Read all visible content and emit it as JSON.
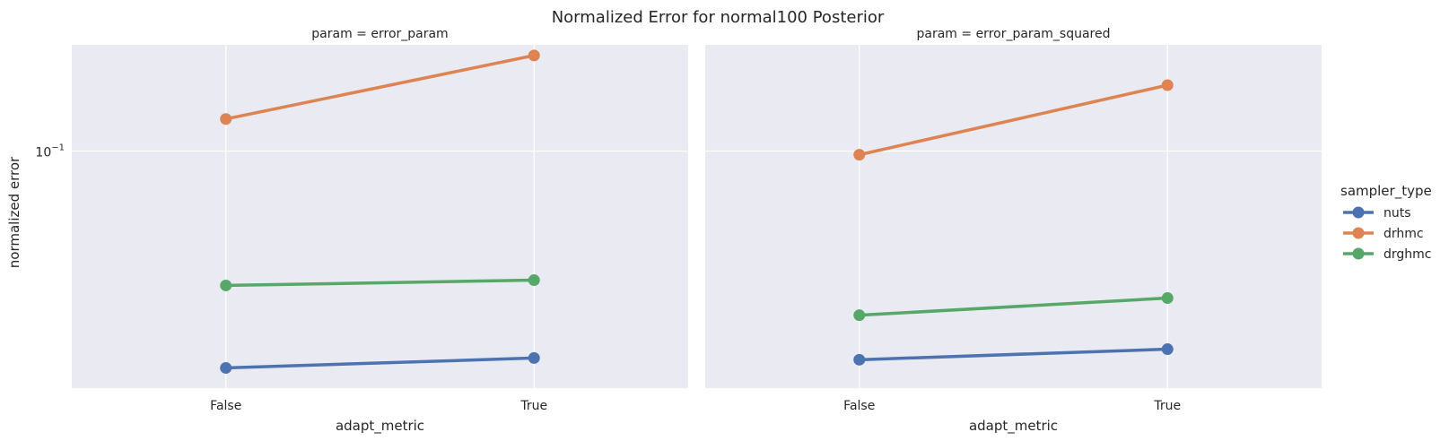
{
  "chart_data": {
    "type": "line",
    "title": "Normalized Error for normal100 Posterior",
    "xlabel": "adapt_metric",
    "ylabel": "normalized error",
    "categories": [
      "False",
      "True"
    ],
    "yscale": "log",
    "ylim": [
      0.0276,
      0.178
    ],
    "yticks": [
      {
        "value": 0.1,
        "label": "10",
        "exponent": "−1"
      }
    ],
    "grid": true,
    "legend": {
      "title": "sampler_type",
      "placement": "right",
      "entries": [
        {
          "name": "nuts",
          "color": "#4c72b0"
        },
        {
          "name": "drhmc",
          "color": "#dd8452"
        },
        {
          "name": "drghmc",
          "color": "#55a868"
        }
      ]
    },
    "facets": [
      {
        "title": "param = error_param",
        "series": [
          {
            "name": "nuts",
            "values": [
              0.0308,
              0.0325
            ]
          },
          {
            "name": "drhmc",
            "values": [
              0.119,
              0.168
            ]
          },
          {
            "name": "drghmc",
            "values": [
              0.0482,
              0.0496
            ]
          }
        ]
      },
      {
        "title": "param = error_param_squared",
        "series": [
          {
            "name": "nuts",
            "values": [
              0.0322,
              0.0341
            ]
          },
          {
            "name": "drhmc",
            "values": [
              0.098,
              0.143
            ]
          },
          {
            "name": "drghmc",
            "values": [
              0.041,
              0.045
            ]
          }
        ]
      }
    ]
  }
}
